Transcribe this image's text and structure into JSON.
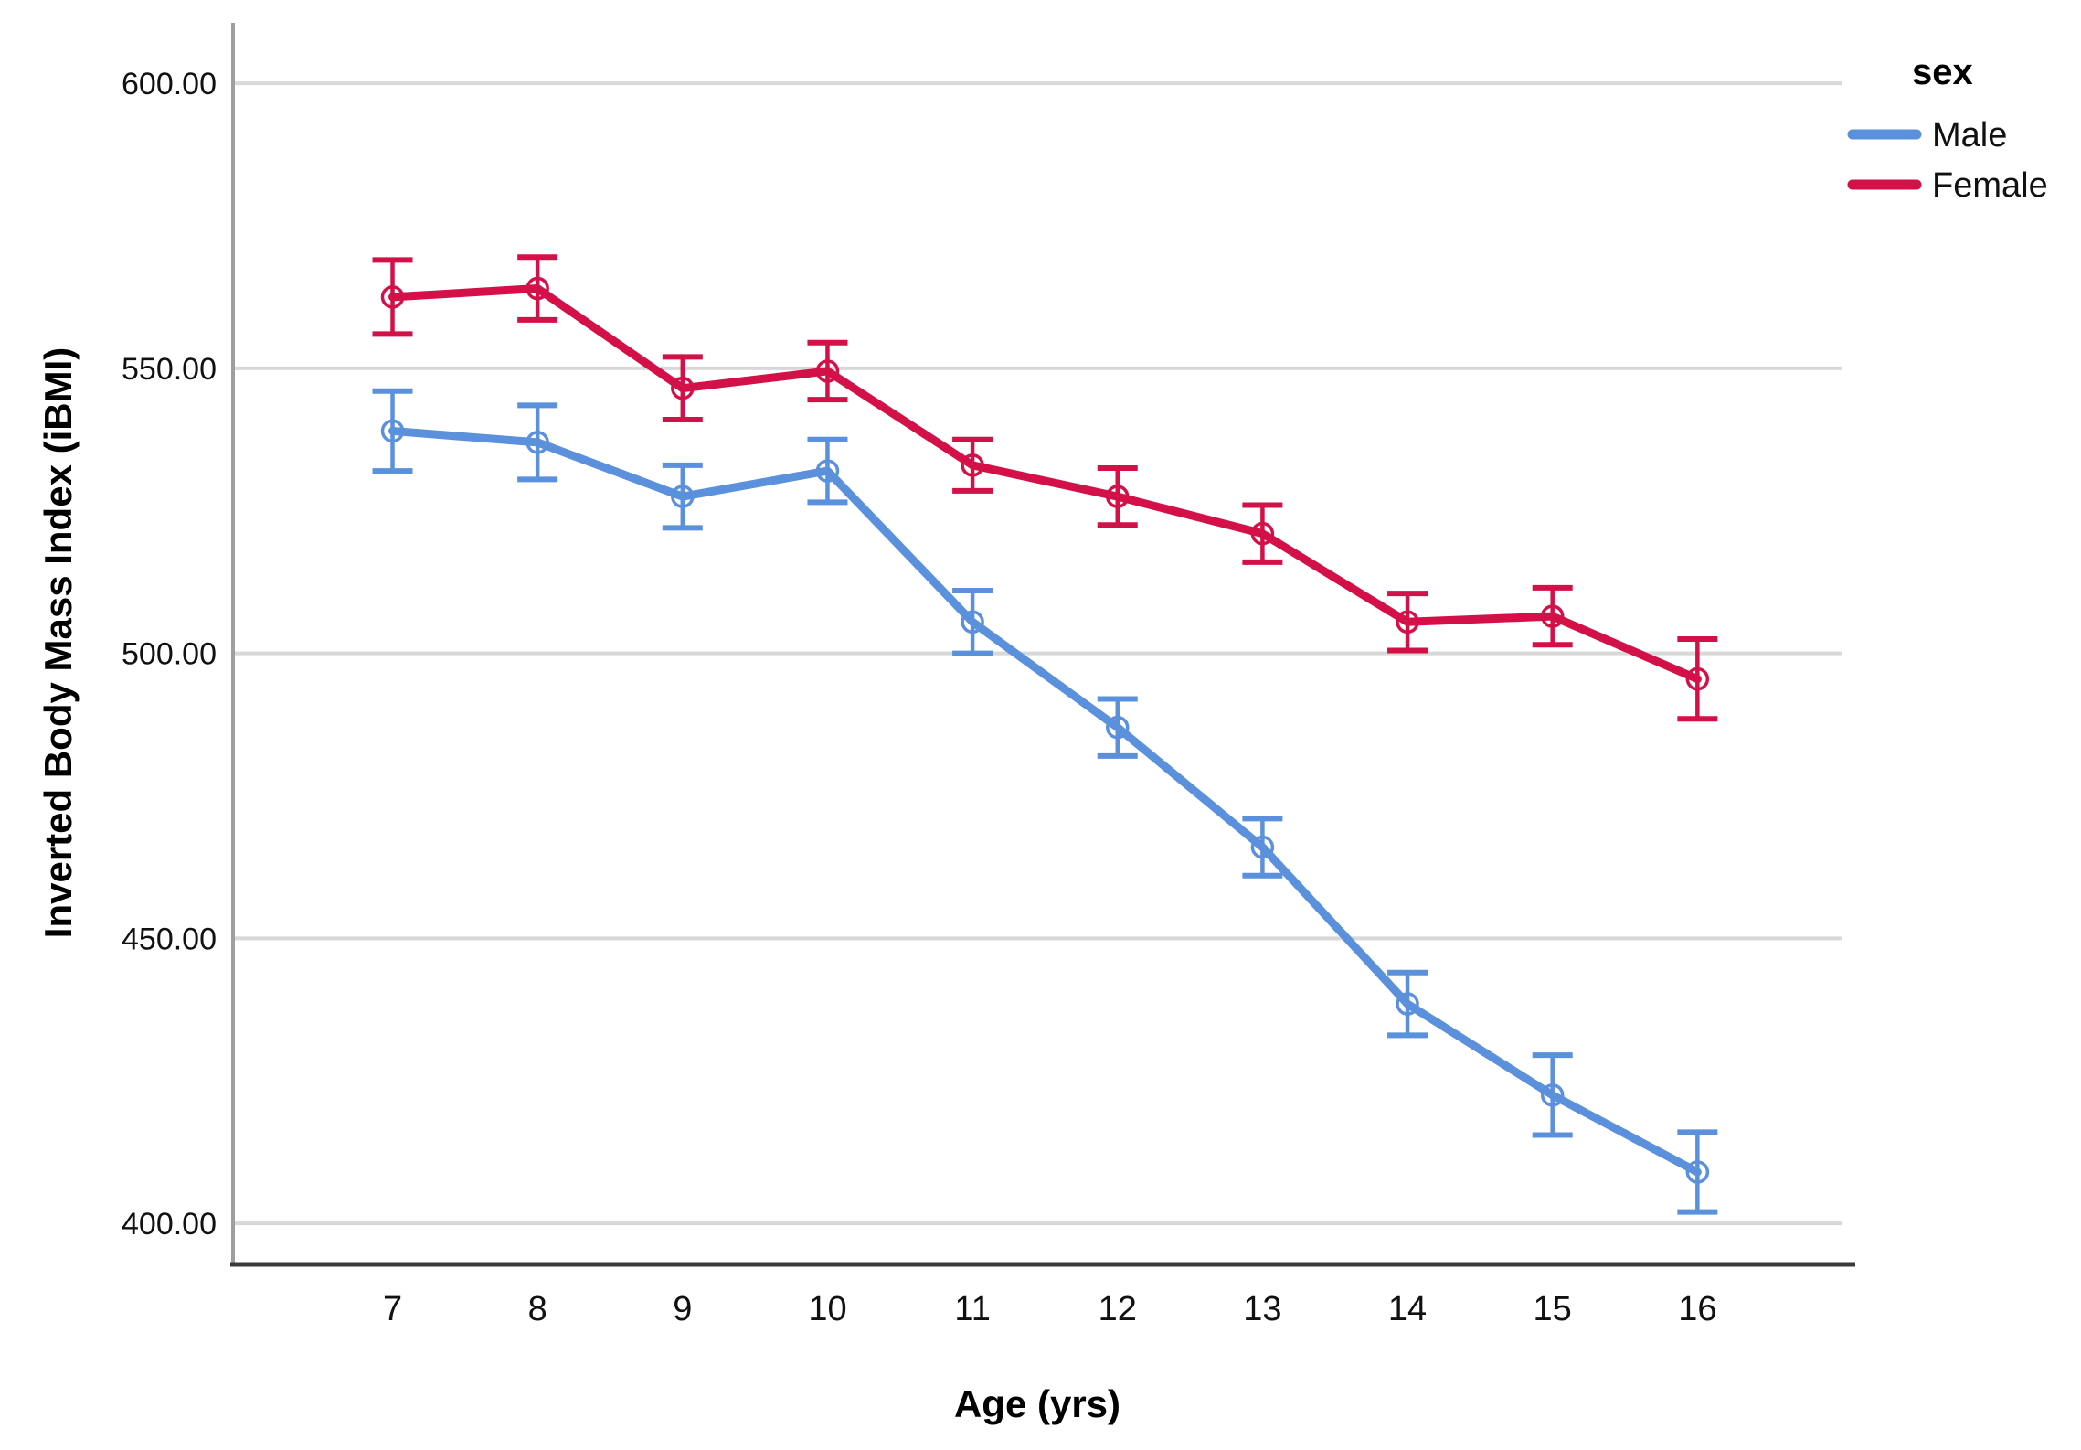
{
  "chart_data": {
    "type": "line",
    "title": "",
    "xlabel": "Age (yrs)",
    "ylabel": "Inverted Body Mass Index (iBMI)",
    "x": [
      7,
      8,
      9,
      10,
      11,
      12,
      13,
      14,
      15,
      16
    ],
    "xtick_labels": [
      "7",
      "8",
      "9",
      "10",
      "11",
      "12",
      "13",
      "14",
      "15",
      "16"
    ],
    "yticks": [
      400,
      450,
      500,
      550,
      600
    ],
    "ytick_labels": [
      "400.00",
      "450.00",
      "500.00",
      "550.00",
      "600.00"
    ],
    "xlim": [
      5.9,
      17.0
    ],
    "ylim": [
      392.8,
      610.6
    ],
    "grid": "horizontal",
    "error_bars": true,
    "marker": "open-circle",
    "series": [
      {
        "name": "Male",
        "color": "#5B90DC",
        "values": [
          539.0,
          537.0,
          527.5,
          532.0,
          505.5,
          487.0,
          466.0,
          438.5,
          422.5,
          409.0
        ],
        "errors": [
          7.0,
          6.5,
          5.5,
          5.5,
          5.5,
          5.0,
          5.0,
          5.5,
          7.0,
          7.0
        ]
      },
      {
        "name": "Female",
        "color": "#D31148",
        "values": [
          562.5,
          564.0,
          546.5,
          549.5,
          533.0,
          527.5,
          521.0,
          505.5,
          506.5,
          495.5
        ],
        "errors": [
          6.5,
          5.5,
          5.5,
          5.0,
          4.5,
          5.0,
          5.0,
          5.0,
          5.0,
          7.0
        ]
      }
    ],
    "legend": {
      "title": "sex",
      "entries": [
        "Male",
        "Female"
      ],
      "position": "top-right"
    },
    "style": {
      "grid_color": "#D8D8D8",
      "y_axis_color": "#9E9E9E",
      "x_axis_color": "#3A3A3A",
      "tick_label_color": "#111111",
      "title_color": "#000000",
      "background": "#ffffff"
    }
  }
}
